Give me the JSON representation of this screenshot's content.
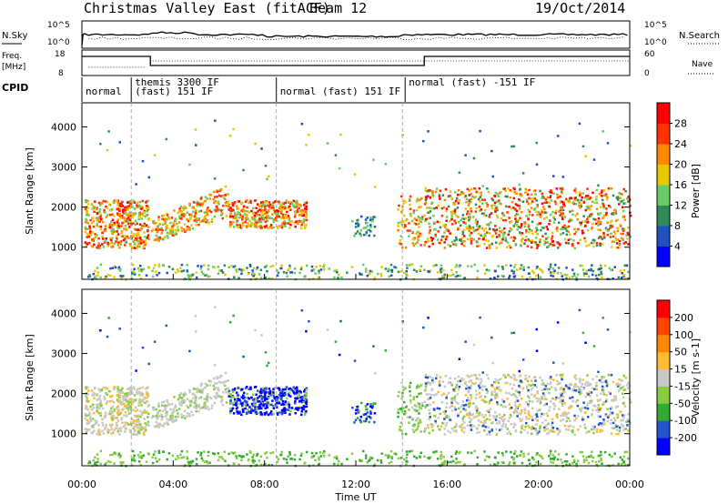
{
  "header": {
    "title": "Christmas Valley East (fitACF)",
    "beam": "Beam 12",
    "date": "19/Oct/2014"
  },
  "time_axis": {
    "label": "Time UT",
    "ticks": [
      "00:00",
      "04:00",
      "08:00",
      "12:00",
      "16:00",
      "20:00",
      "00:00"
    ]
  },
  "noise_panel": {
    "left_label": "N.Sky",
    "right_label": "N.Search",
    "left_ticks": [
      "10^5",
      "10^0"
    ],
    "right_ticks": [
      "10^5",
      "10^0"
    ]
  },
  "freq_panel": {
    "left_label_1": "Freq.",
    "left_label_2": "[MHz]",
    "right_label": "Nave",
    "left_ticks": [
      "18",
      "8"
    ],
    "right_ticks": [
      "60",
      "0"
    ]
  },
  "cpid": {
    "label": "CPID",
    "segments": [
      {
        "text": "normal",
        "start": 0.0,
        "end": 0.09
      },
      {
        "text": "themis 3300 IF",
        "start": 0.09,
        "end": 0.35
      },
      {
        "text": "(fast) 151 IF",
        "start": 0.09,
        "end": 0.35
      },
      {
        "text": "normal (fast) 151 IF",
        "start": 0.355,
        "end": 0.585
      },
      {
        "text": "normal (fast) -151 IF",
        "start": 0.59,
        "end": 1.0
      }
    ]
  },
  "chart_data": [
    {
      "type": "heatmap",
      "name": "power",
      "ylabel": "Slant Range [km]",
      "yticks": [
        "1000",
        "2000",
        "3000",
        "4000"
      ],
      "ylim": [
        200,
        4600
      ],
      "xlim": [
        0,
        24
      ],
      "colorbar_label": "Power [dB]",
      "colorbar_ticks": [
        "4",
        "8",
        "12",
        "16",
        "20",
        "24",
        "28"
      ],
      "colorbar_colors": [
        "#0000ff",
        "#2050c0",
        "#2e8b57",
        "#66cc66",
        "#e6c800",
        "#ff8800",
        "#ff3300",
        "#ff0000"
      ]
    },
    {
      "type": "heatmap",
      "name": "velocity",
      "ylabel": "Slant Range [km]",
      "yticks": [
        "1000",
        "2000",
        "3000",
        "4000"
      ],
      "ylim": [
        200,
        4600
      ],
      "xlim": [
        0,
        24
      ],
      "colorbar_label": "Velocity [m s-1]",
      "colorbar_ticks": [
        "200",
        "100",
        "50",
        "15",
        "-15",
        "-50",
        "-100",
        "-200"
      ],
      "colorbar_colors": [
        "#0000ff",
        "#2255cc",
        "#33aa33",
        "#88cc44",
        "#c8c8c8",
        "#ffbb33",
        "#ff8800",
        "#ff4400",
        "#ff0000"
      ]
    }
  ]
}
